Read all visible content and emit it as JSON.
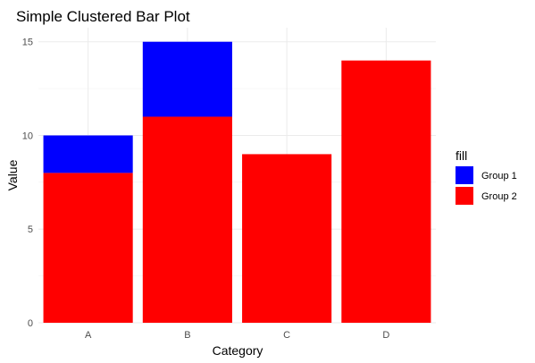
{
  "chart_data": {
    "type": "bar",
    "stacked": true,
    "title": "Simple Clustered Bar Plot",
    "xlabel": "Category",
    "ylabel": "Value",
    "categories": [
      "A",
      "B",
      "C",
      "D"
    ],
    "series": [
      {
        "name": "Group 1",
        "color": "#0000ff",
        "values": [
          2,
          4,
          0,
          0
        ]
      },
      {
        "name": "Group 2",
        "color": "#ff0000",
        "values": [
          8,
          11,
          9,
          14
        ]
      }
    ],
    "stack_order": [
      "Group 2",
      "Group 1"
    ],
    "ylim": [
      0,
      15.75
    ],
    "yticks": [
      0,
      5,
      10,
      15
    ],
    "grid": true,
    "legend": {
      "title": "fill",
      "position": "right"
    }
  }
}
